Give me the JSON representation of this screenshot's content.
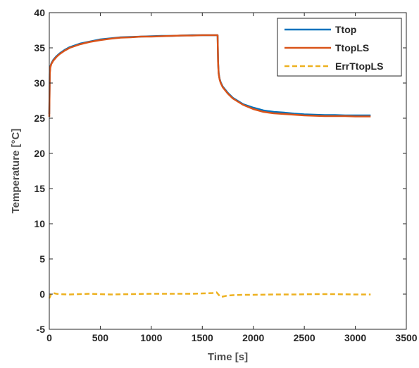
{
  "chart_data": {
    "type": "line",
    "title": "",
    "xlabel": "Time [s]",
    "ylabel": "Temperature [°C]",
    "xlim": [
      0,
      3500
    ],
    "ylim": [
      -5,
      40
    ],
    "xticks": [
      0,
      500,
      1000,
      1500,
      2000,
      2500,
      3000,
      3500
    ],
    "yticks": [
      -5,
      0,
      5,
      10,
      15,
      20,
      25,
      30,
      35,
      40
    ],
    "grid": false,
    "legend_position": "top-right",
    "series": [
      {
        "name": "Ttop",
        "color": "#0072bd",
        "style": "solid",
        "x": [
          0,
          5,
          10,
          20,
          40,
          70,
          100,
          150,
          200,
          300,
          400,
          500,
          600,
          700,
          800,
          900,
          1000,
          1100,
          1200,
          1300,
          1400,
          1500,
          1600,
          1650,
          1655,
          1660,
          1670,
          1680,
          1700,
          1750,
          1800,
          1900,
          2000,
          2100,
          2200,
          2300,
          2400,
          2500,
          2600,
          2700,
          2800,
          2900,
          3000,
          3100,
          3150
        ],
        "y": [
          25.6,
          31.5,
          32.3,
          32.8,
          33.3,
          33.8,
          34.2,
          34.7,
          35.1,
          35.6,
          35.9,
          36.2,
          36.35,
          36.5,
          36.55,
          36.6,
          36.65,
          36.7,
          36.7,
          36.75,
          36.8,
          36.8,
          36.8,
          36.8,
          33.0,
          31.4,
          30.6,
          30.1,
          29.5,
          28.6,
          27.9,
          27.0,
          26.5,
          26.1,
          25.9,
          25.8,
          25.65,
          25.55,
          25.5,
          25.45,
          25.45,
          25.4,
          25.4,
          25.4,
          25.4
        ]
      },
      {
        "name": "TtopLS",
        "color": "#d95319",
        "style": "solid",
        "x": [
          0,
          5,
          10,
          20,
          40,
          70,
          100,
          150,
          200,
          300,
          400,
          500,
          600,
          700,
          800,
          900,
          1000,
          1100,
          1200,
          1300,
          1400,
          1500,
          1600,
          1650,
          1655,
          1660,
          1670,
          1680,
          1700,
          1750,
          1800,
          1900,
          2000,
          2100,
          2200,
          2300,
          2400,
          2500,
          2600,
          2700,
          2800,
          2900,
          3000,
          3100,
          3150
        ],
        "y": [
          25.2,
          31.3,
          32.2,
          32.7,
          33.2,
          33.7,
          34.1,
          34.6,
          35.0,
          35.5,
          35.85,
          36.1,
          36.3,
          36.45,
          36.5,
          36.6,
          36.6,
          36.65,
          36.7,
          36.75,
          36.75,
          36.8,
          36.8,
          36.8,
          32.9,
          31.3,
          30.5,
          30.0,
          29.4,
          28.5,
          27.8,
          26.9,
          26.3,
          25.9,
          25.7,
          25.6,
          25.5,
          25.4,
          25.35,
          25.3,
          25.3,
          25.3,
          25.25,
          25.25,
          25.25
        ]
      },
      {
        "name": "ErrTtopLS",
        "color": "#edb120",
        "style": "dashed",
        "x": [
          0,
          10,
          20,
          40,
          70,
          100,
          200,
          400,
          600,
          800,
          1000,
          1200,
          1400,
          1500,
          1600,
          1640,
          1660,
          1680,
          1700,
          1750,
          1800,
          1900,
          2000,
          2200,
          2400,
          2600,
          2800,
          3000,
          3150
        ],
        "y": [
          -0.6,
          -0.3,
          0.1,
          0.15,
          0.05,
          0.0,
          -0.05,
          0.05,
          -0.05,
          0.0,
          0.05,
          0.05,
          0.05,
          0.1,
          0.15,
          0.25,
          -0.1,
          -0.4,
          -0.35,
          -0.2,
          -0.15,
          -0.1,
          -0.1,
          -0.05,
          -0.05,
          0.0,
          0.0,
          -0.05,
          -0.05
        ]
      }
    ]
  }
}
